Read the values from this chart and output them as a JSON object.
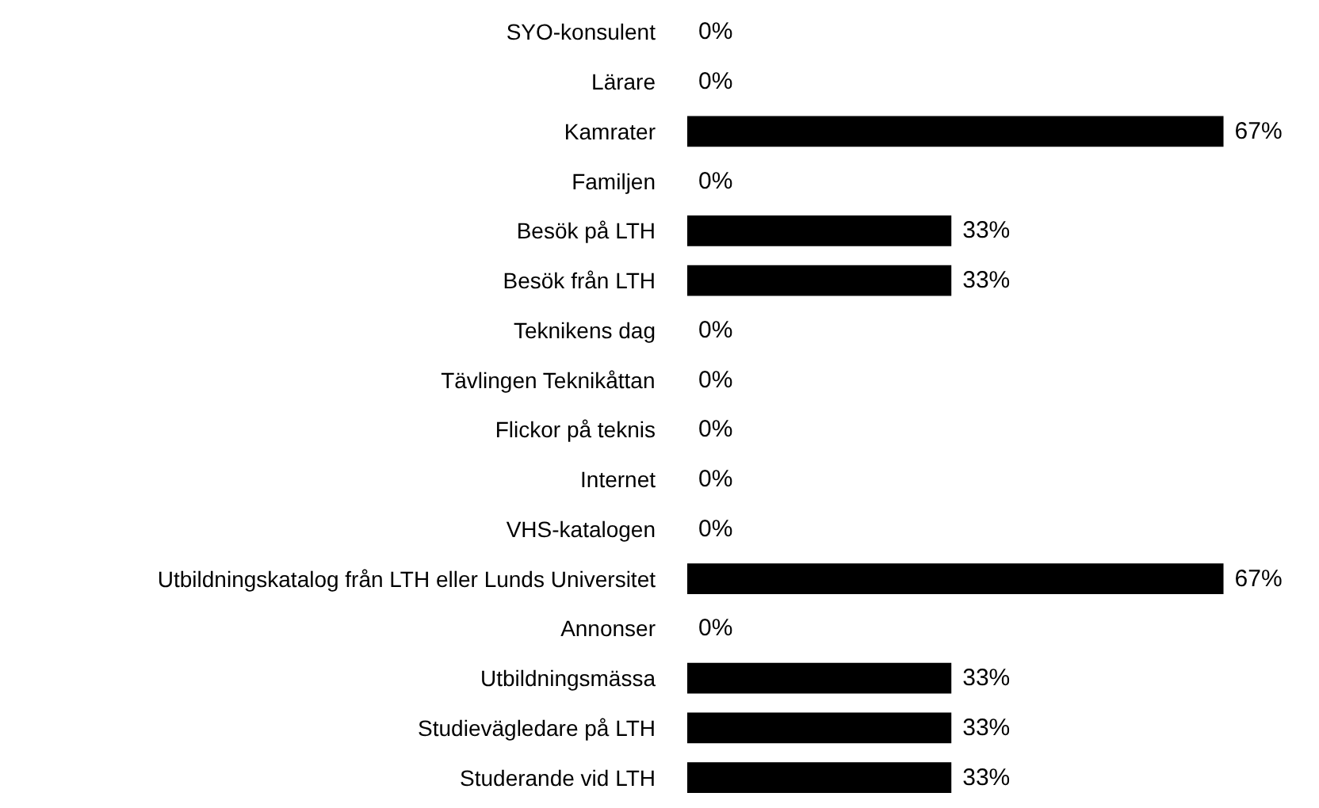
{
  "chart_data": {
    "type": "bar",
    "orientation": "horizontal",
    "categories": [
      "SYO-konsulent",
      "Lärare",
      "Kamrater",
      "Familjen",
      "Besök på LTH",
      "Besök från LTH",
      "Teknikens dag",
      "Tävlingen Teknikåttan",
      "Flickor på teknis",
      "Internet",
      "VHS-katalogen",
      "Utbildningskatalog från LTH eller Lunds Universitet",
      "Annonser",
      "Utbildningsmässa",
      "Studievägledare på LTH",
      "Studerande vid LTH"
    ],
    "values": [
      0,
      0,
      67,
      0,
      33,
      33,
      0,
      0,
      0,
      0,
      0,
      67,
      0,
      33,
      33,
      33
    ],
    "value_labels": [
      "0%",
      "0%",
      "67%",
      "0%",
      "33%",
      "33%",
      "0%",
      "0%",
      "0%",
      "0%",
      "0%",
      "67%",
      "0%",
      "33%",
      "33%",
      "33%"
    ],
    "color": "#000000",
    "tick_labels": "y"
  }
}
